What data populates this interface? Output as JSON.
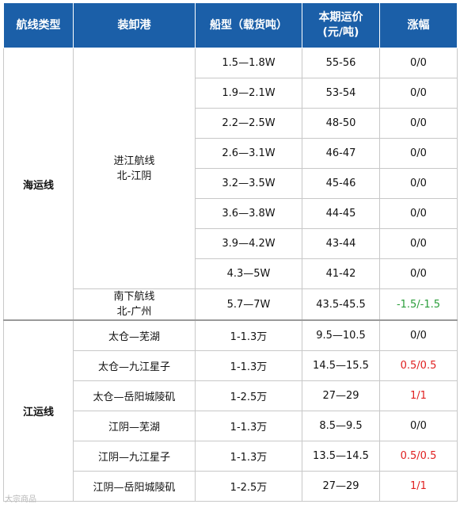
{
  "headers": {
    "route_type": "航线类型",
    "port": "装卸港",
    "ship_type": "船型（载货吨）",
    "freight_line1": "本期运价",
    "freight_line2": "(元/吨)",
    "change": "涨幅"
  },
  "sea": {
    "type": "海运线",
    "port1_line1": "进江航线",
    "port1_line2": "北-江阴",
    "port2_line1": "南下航线",
    "port2_line2": "北-广州",
    "rows": [
      {
        "ship": "1.5—1.8W",
        "price": "55-56",
        "change": "0/0"
      },
      {
        "ship": "1.9—2.1W",
        "price": "53-54",
        "change": "0/0"
      },
      {
        "ship": "2.2—2.5W",
        "price": "48-50",
        "change": "0/0"
      },
      {
        "ship": "2.6—3.1W",
        "price": "46-47",
        "change": "0/0"
      },
      {
        "ship": "3.2—3.5W",
        "price": "45-46",
        "change": "0/0"
      },
      {
        "ship": "3.6—3.8W",
        "price": "44-45",
        "change": "0/0"
      },
      {
        "ship": "3.9—4.2W",
        "price": "43-44",
        "change": "0/0"
      },
      {
        "ship": "4.3—5W",
        "price": "41-42",
        "change": "0/0"
      },
      {
        "ship": "5.7—7W",
        "price": "43.5-45.5",
        "change": "-1.5/-1.5"
      }
    ]
  },
  "river": {
    "type": "江运线",
    "rows": [
      {
        "port": "太仓—芜湖",
        "ship": "1-1.3万",
        "price": "9.5—10.5",
        "change": "0/0"
      },
      {
        "port": "太仓—九江星子",
        "ship": "1-1.3万",
        "price": "14.5—15.5",
        "change": "0.5/0.5"
      },
      {
        "port": "太仓—岳阳城陵矶",
        "ship": "1-2.5万",
        "price": "27—29",
        "change": "1/1"
      },
      {
        "port": "江阴—芜湖",
        "ship": "1-1.3万",
        "price": "8.5—9.5",
        "change": "0/0"
      },
      {
        "port": "江阴—九江星子",
        "ship": "1-1.3万",
        "price": "13.5—14.5",
        "change": "0.5/0.5"
      },
      {
        "port": "江阴—岳阳城陵矶",
        "ship": "1-2.5万",
        "price": "27—29",
        "change": "1/1"
      }
    ]
  },
  "colors": {
    "header_bg": "#1b5fa8",
    "decrease": "#2a9d3a",
    "increase": "#e02020"
  },
  "watermark": "大宗商品"
}
